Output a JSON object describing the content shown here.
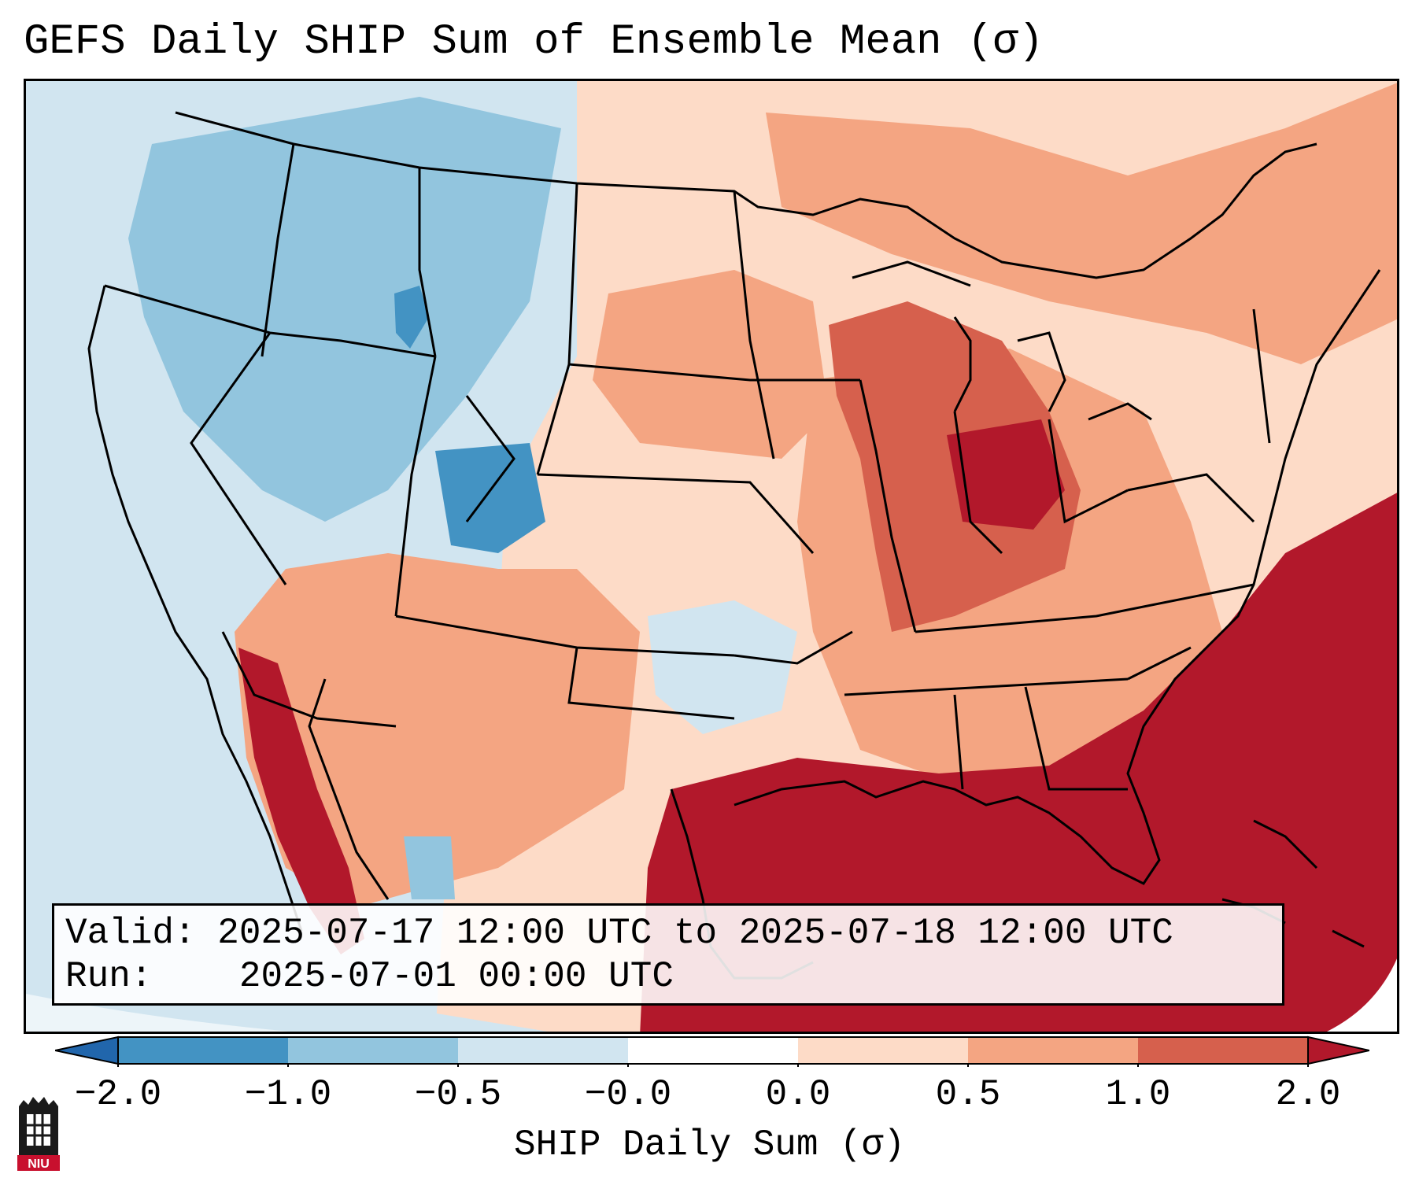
{
  "title": "GEFS Daily SHIP Sum of Ensemble Mean (σ)",
  "info": {
    "valid_label": "Valid:",
    "valid_value": "2025-07-17 12:00 UTC to 2025-07-18 12:00 UTC",
    "run_label": "Run:",
    "run_value": "2025-07-01 00:00 UTC"
  },
  "colorbar": {
    "label": "SHIP Daily Sum (σ)",
    "ticks": [
      "−2.0",
      "−1.0",
      "−0.5",
      "−0.0",
      "0.0",
      "0.5",
      "1.0",
      "2.0"
    ],
    "bin_colors": [
      "#4393c3",
      "#92c5de",
      "#d1e5f0",
      "#ffffff",
      "#fddbc7",
      "#f4a582",
      "#d6604d",
      "#b2182b"
    ],
    "under_color": "#2166ac",
    "over_color": "#b2182b"
  },
  "legend_regions": {
    "west_coast_ocean": "#d1e5f0",
    "northwest_interior": "#92c5de",
    "central_rockies": "#4393c3",
    "great_plains": "#fddbc7",
    "midwest_southeast": "#f4a582",
    "ohio_valley": "#d6604d",
    "gulf_atlantic": "#b2182b"
  },
  "logo": {
    "text": "NIU",
    "color": "#c8102e"
  }
}
